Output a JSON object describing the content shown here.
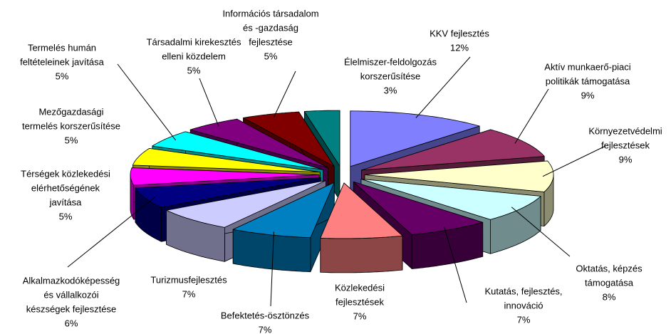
{
  "chart_data": {
    "type": "pie3d",
    "categories": [
      [
        "KKV fejlesztés"
      ],
      [
        "Aktív munkaerő-piaci",
        "politikák támogatása"
      ],
      [
        "Környezetvédelmi",
        "fejlesztések"
      ],
      [
        "Oktatás, képzés",
        "támogatása"
      ],
      [
        "Kutatás, fejlesztés,",
        "innováció"
      ],
      [
        "Közlekedési",
        "fejlesztések"
      ],
      [
        "Befektetés-ösztönzés"
      ],
      [
        "Turizmusfejlesztés"
      ],
      [
        "Alkalmazkodóképesség",
        "és vállalkozói",
        "készségek fejlesztése"
      ],
      [
        "Térségek közlekedési",
        "elérhetőségének",
        "javítása"
      ],
      [
        "Mezőgazdasági",
        "termelés korszerűsítése"
      ],
      [
        "Termelés humán",
        "feltételeinek javítása"
      ],
      [
        "Társadalmi kirekesztés",
        "elleni közdelem"
      ],
      [
        "Információs társadalom",
        "és -gazdaság",
        "fejlesztése"
      ],
      [
        "Élelmiszer-feldolgozás",
        "korszerűsítése"
      ]
    ],
    "values": [
      12,
      9,
      9,
      8,
      7,
      7,
      7,
      7,
      6,
      5,
      5,
      5,
      5,
      5,
      3
    ],
    "value_labels": [
      "12%",
      "9%",
      "9%",
      "8%",
      "7%",
      "7%",
      "7%",
      "7%",
      "6%",
      "5%",
      "5%",
      "5%",
      "5%",
      "5%",
      "3%"
    ],
    "colors": [
      "#8080ff",
      "#993366",
      "#ffffcc",
      "#ccffff",
      "#660066",
      "#ff8080",
      "#0080c0",
      "#ccccff",
      "#000080",
      "#ff00ff",
      "#ffff00",
      "#00ffff",
      "#800080",
      "#800000",
      "#008080"
    ]
  }
}
